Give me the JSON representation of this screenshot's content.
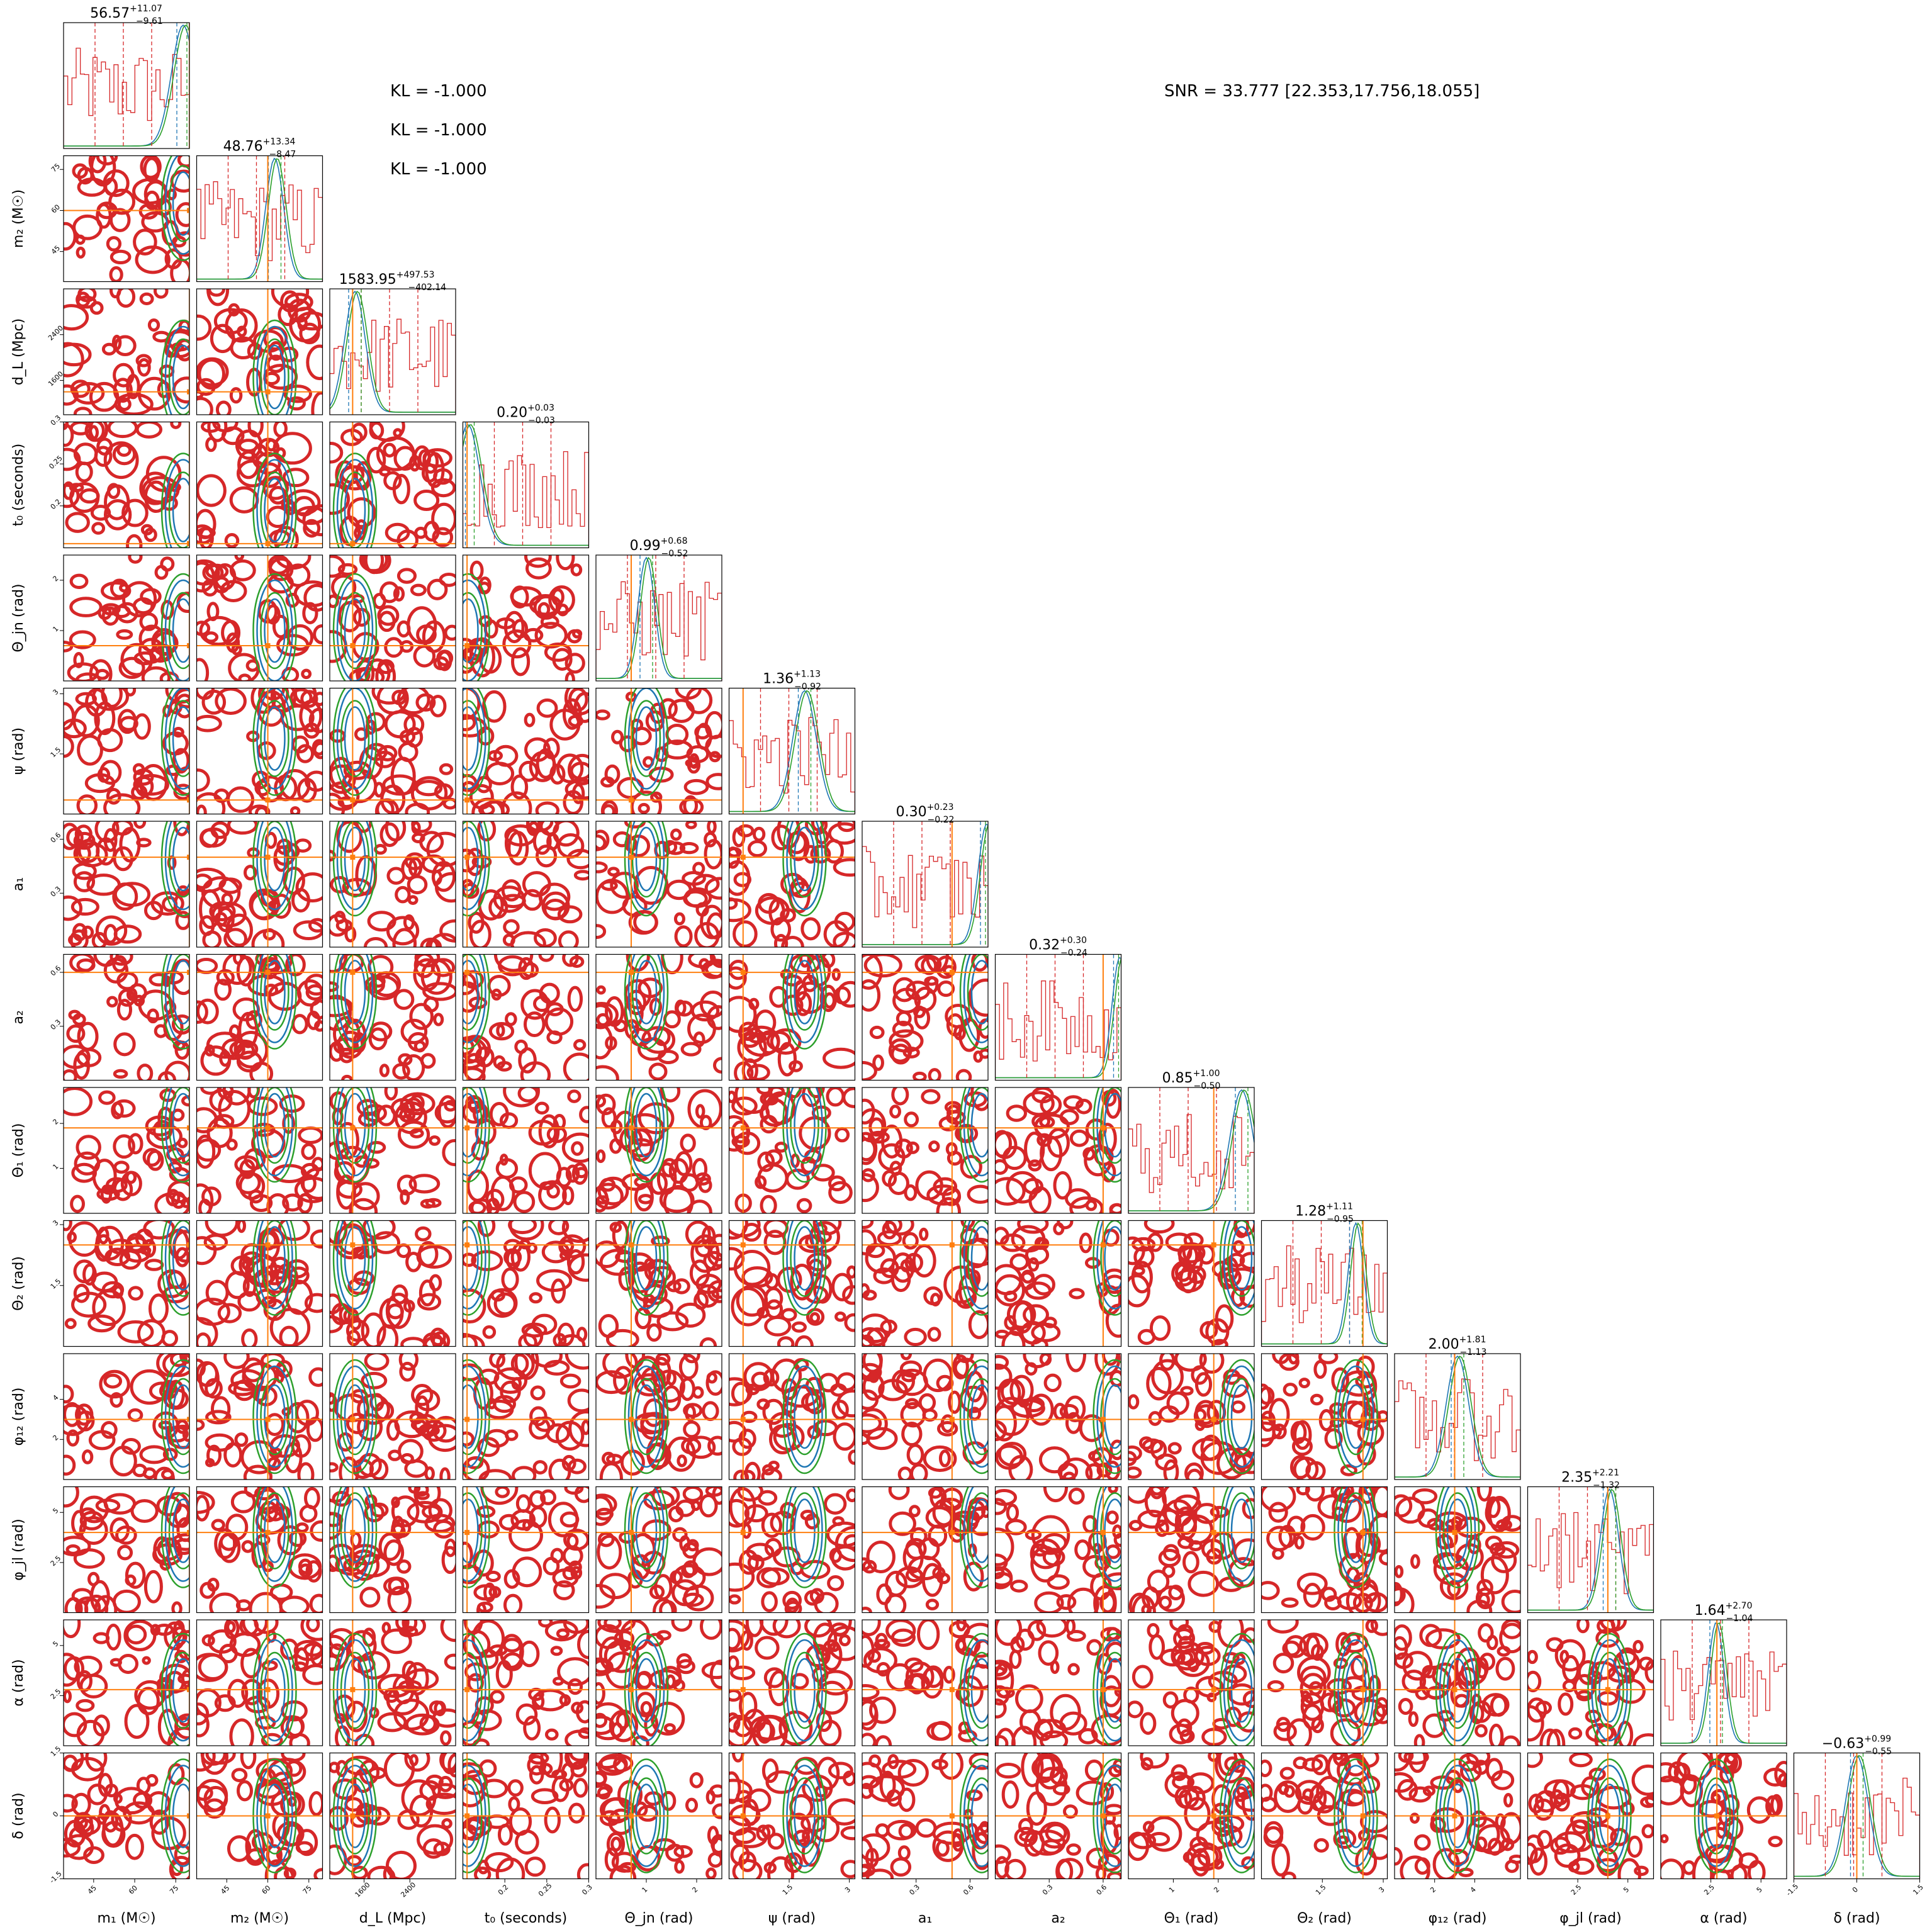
{
  "figure": {
    "kl_labels": [
      "KL = -1.000",
      "KL = -1.000",
      "KL = -1.000"
    ],
    "snr_label": "SNR = 33.777 [22.353,17.756,18.055]"
  },
  "colors": {
    "red": "#d62728",
    "blue": "#1f77b4",
    "green": "#2ca02c",
    "truth": "#ff7f0e",
    "frame": "#000000"
  },
  "chart_data": {
    "type": "corner",
    "parameters": [
      {
        "label": "m₁ (M☉)",
        "axis_label": "m_1 (M_⊙)",
        "range": [
          34,
          80
        ],
        "ticks": [
          45,
          60,
          75
        ],
        "truth": 80,
        "title": "56.57",
        "err_plus": "+11.07",
        "err_minus": "−9.61",
        "hist_peak": 0.95
      },
      {
        "label": "m₂ (M☉)",
        "axis_label": "m_2 (M_⊙)",
        "range": [
          34,
          80
        ],
        "ticks": [
          45,
          60,
          75
        ],
        "truth": 60,
        "title": "48.76",
        "err_plus": "+13.34",
        "err_minus": "−8.47",
        "hist_peak": 0.62
      },
      {
        "label": "d_L (Mpc)",
        "axis_label": "d_L (Mpc)",
        "range": [
          1000,
          3200
        ],
        "ticks": [
          1600,
          2400
        ],
        "truth": 1400,
        "title": "1583.95",
        "err_plus": "+497.53",
        "err_minus": "−402.14",
        "hist_peak": 0.2
      },
      {
        "label": "t₀ (seconds)",
        "axis_label": "t_0 (seconds)",
        "range": [
          0.15,
          0.3
        ],
        "ticks": [
          0.2,
          0.25,
          0.3
        ],
        "truth": 0.155,
        "title": "0.20",
        "err_plus": "+0.03",
        "err_minus": "−0.03",
        "hist_peak": 0.04
      },
      {
        "label": "Θ_jn (rad)",
        "axis_label": "Θ_jn (rad)",
        "range": [
          0,
          2.5
        ],
        "ticks": [
          1,
          2
        ],
        "truth": 0.7,
        "title": "0.99",
        "err_plus": "+0.68",
        "err_minus": "−0.52",
        "hist_peak": 0.4
      },
      {
        "label": "ψ (rad)",
        "axis_label": "ψ (rad)",
        "range": [
          0,
          3.14
        ],
        "ticks": [
          1.5,
          3.0
        ],
        "truth": 0.35,
        "title": "1.36",
        "err_plus": "+1.13",
        "err_minus": "−0.92",
        "hist_peak": 0.6
      },
      {
        "label": "a₁",
        "axis_label": "a_1",
        "range": [
          0,
          0.7
        ],
        "ticks": [
          0.3,
          0.6
        ],
        "truth": 0.5,
        "title": "0.30",
        "err_plus": "+0.23",
        "err_minus": "−0.22",
        "hist_peak": 0.99
      },
      {
        "label": "a₂",
        "axis_label": "a_2",
        "range": [
          0,
          0.7
        ],
        "ticks": [
          0.3,
          0.6
        ],
        "truth": 0.6,
        "title": "0.32",
        "err_plus": "+0.30",
        "err_minus": "−0.24",
        "hist_peak": 0.99
      },
      {
        "label": "Θ₁ (rad)",
        "axis_label": "Θ_1 (rad)",
        "range": [
          0,
          2.8
        ],
        "ticks": [
          1,
          2
        ],
        "truth": 1.9,
        "title": "0.85",
        "err_plus": "+1.00",
        "err_minus": "−0.50",
        "hist_peak": 0.9
      },
      {
        "label": "Θ₂ (rad)",
        "axis_label": "Θ_2 (rad)",
        "range": [
          0,
          3.1
        ],
        "ticks": [
          1.5,
          3.0
        ],
        "truth": 2.5,
        "title": "1.28",
        "err_plus": "+1.11",
        "err_minus": "−0.95",
        "hist_peak": 0.75
      },
      {
        "label": "φ₁₂ (rad)",
        "axis_label": "φ_12 (rad)",
        "range": [
          0,
          6.28
        ],
        "ticks": [
          2,
          4
        ],
        "truth": 3,
        "title": "2.00",
        "err_plus": "+1.81",
        "err_minus": "−1.13",
        "hist_peak": 0.5
      },
      {
        "label": "φ_jl (rad)",
        "axis_label": "φ_jl (rad)",
        "range": [
          0,
          6.28
        ],
        "ticks": [
          2.5,
          5.0
        ],
        "truth": 4,
        "title": "2.35",
        "err_plus": "+2.21",
        "err_minus": "−1.32",
        "hist_peak": 0.65
      },
      {
        "label": "α (rad)",
        "axis_label": "α (rad)",
        "range": [
          0,
          6.28
        ],
        "ticks": [
          2.5,
          5.0
        ],
        "truth": 2.8,
        "title": "1.64",
        "err_plus": "+2.70",
        "err_minus": "−1.04",
        "hist_peak": 0.44
      },
      {
        "label": "δ (rad)",
        "axis_label": "δ (rad)",
        "range": [
          -1.5,
          1.5
        ],
        "ticks": [
          -1.5,
          0.0,
          1.5
        ],
        "truth": 0.0,
        "title": "−0.63",
        "err_plus": "+0.99",
        "err_minus": "−0.55",
        "hist_peak": 0.5
      }
    ],
    "series": [
      {
        "color": "red"
      },
      {
        "color": "blue"
      },
      {
        "color": "green"
      }
    ],
    "truth_color": "truth"
  }
}
